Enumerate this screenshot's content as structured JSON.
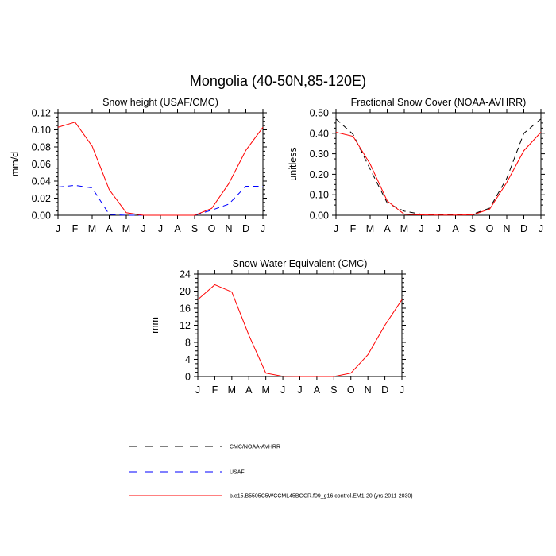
{
  "figure_title": "Mongolia (40-50N,85-120E)",
  "chart_data": [
    {
      "type": "line",
      "title": "Snow height (USAF/CMC)",
      "xlabel": "",
      "ylabel": "mm/d",
      "categories": [
        "J",
        "F",
        "M",
        "A",
        "M",
        "J",
        "J",
        "A",
        "S",
        "O",
        "N",
        "D",
        "J"
      ],
      "ylim": [
        0,
        0.12
      ],
      "yticks": [
        "0.00",
        "0.02",
        "0.04",
        "0.06",
        "0.08",
        "0.10",
        "0.12"
      ],
      "series": [
        {
          "name": "CMC/NOAA-AVHRR",
          "color": "#000000",
          "dash": true,
          "values": [
            0,
            0,
            0,
            0,
            0,
            0,
            0,
            0,
            0,
            0,
            0,
            0,
            0
          ]
        },
        {
          "name": "USAF",
          "color": "#0000ff",
          "dash": true,
          "values": [
            0.033,
            0.035,
            0.032,
            0.001,
            0.0,
            0.0,
            0.0,
            0.0,
            0.0,
            0.006,
            0.013,
            0.034,
            0.034
          ]
        },
        {
          "name": "b.e15.B5505C5WCCML45BGCR.f09_g16.control.EM1-20 (yrs 2011-2030)",
          "color": "#ff0000",
          "dash": false,
          "values": [
            0.103,
            0.109,
            0.081,
            0.03,
            0.003,
            0.0,
            0.0,
            0.0,
            0.0,
            0.008,
            0.037,
            0.076,
            0.103
          ]
        }
      ]
    },
    {
      "type": "line",
      "title": "Fractional Snow Cover (NOAA-AVHRR)",
      "xlabel": "",
      "ylabel": "unitless",
      "categories": [
        "J",
        "F",
        "M",
        "A",
        "M",
        "J",
        "J",
        "A",
        "S",
        "O",
        "N",
        "D",
        "J"
      ],
      "ylim": [
        0,
        0.5
      ],
      "yticks": [
        "0.00",
        "0.10",
        "0.20",
        "0.30",
        "0.40",
        "0.50"
      ],
      "series": [
        {
          "name": "CMC/NOAA-AVHRR",
          "color": "#000000",
          "dash": true,
          "values": [
            0.47,
            0.395,
            0.225,
            0.06,
            0.02,
            0.005,
            0.002,
            0.002,
            0.005,
            0.035,
            0.18,
            0.4,
            0.47
          ]
        },
        {
          "name": "b.e15.B5505C5WCCML45BGCR.f09_g16.control.EM1-20 (yrs 2011-2030)",
          "color": "#ff0000",
          "dash": false,
          "values": [
            0.405,
            0.385,
            0.25,
            0.07,
            0.005,
            0.002,
            0.001,
            0.001,
            0.002,
            0.03,
            0.16,
            0.315,
            0.405
          ]
        }
      ]
    },
    {
      "type": "line",
      "title": "Snow Water Equivalent (CMC)",
      "xlabel": "",
      "ylabel": "mm",
      "categories": [
        "J",
        "F",
        "M",
        "A",
        "M",
        "J",
        "J",
        "A",
        "S",
        "O",
        "N",
        "D",
        "J"
      ],
      "ylim": [
        0,
        24
      ],
      "yticks": [
        "0",
        "4",
        "8",
        "12",
        "16",
        "20",
        "24"
      ],
      "series": [
        {
          "name": "CMC/NOAA-AVHRR",
          "color": "#000000",
          "dash": true,
          "values": [
            0,
            0,
            0,
            0,
            0,
            0,
            0,
            0,
            0,
            0,
            0,
            0,
            0
          ]
        },
        {
          "name": "b.e15.B5505C5WCCML45BGCR.f09_g16.control.EM1-20 (yrs 2011-2030)",
          "color": "#ff0000",
          "dash": false,
          "values": [
            18.0,
            21.5,
            19.8,
            9.7,
            0.8,
            0.05,
            0.0,
            0.0,
            0.0,
            0.8,
            5.1,
            12.0,
            18.0
          ]
        }
      ]
    }
  ],
  "legend": [
    {
      "label": "CMC/NOAA-AVHRR",
      "color": "#000000",
      "dash": true
    },
    {
      "label": "USAF",
      "color": "#0000ff",
      "dash": true
    },
    {
      "label": "b.e15.B5505C5WCCML45BGCR.f09_g16.control.EM1-20 (yrs 2011-2030)",
      "color": "#ff0000",
      "dash": false
    }
  ]
}
